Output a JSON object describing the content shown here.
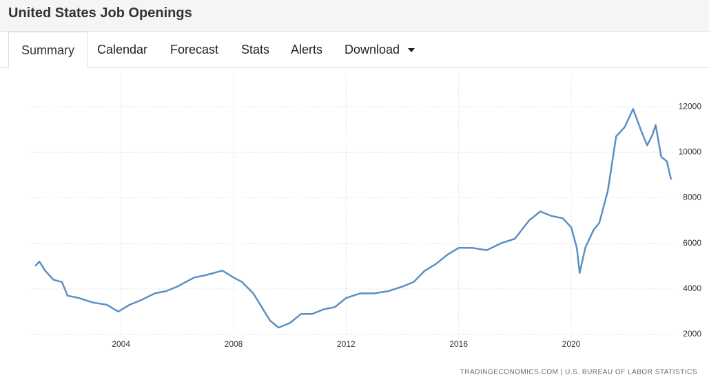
{
  "header": {
    "title": "United States Job Openings"
  },
  "tabs": {
    "items": [
      "Summary",
      "Calendar",
      "Forecast",
      "Stats",
      "Alerts",
      "Download"
    ],
    "active": 0
  },
  "chart_data": {
    "type": "line",
    "x": [
      2000.95,
      2001.1,
      2001.3,
      2001.6,
      2001.9,
      2002.1,
      2002.5,
      2003.0,
      2003.5,
      2003.9,
      2004.3,
      2004.7,
      2005.2,
      2005.6,
      2006.0,
      2006.3,
      2006.6,
      2007.0,
      2007.3,
      2007.6,
      2008.0,
      2008.3,
      2008.7,
      2009.0,
      2009.3,
      2009.6,
      2010.0,
      2010.4,
      2010.8,
      2011.2,
      2011.6,
      2012.0,
      2012.5,
      2013.0,
      2013.5,
      2014.0,
      2014.4,
      2014.8,
      2015.2,
      2015.6,
      2016.0,
      2016.5,
      2017.0,
      2017.5,
      2018.0,
      2018.5,
      2018.9,
      2019.3,
      2019.7,
      2020.0,
      2020.2,
      2020.3,
      2020.5,
      2020.8,
      2021.0,
      2021.3,
      2021.6,
      2021.9,
      2022.2,
      2022.5,
      2022.7,
      2022.9,
      2023.0,
      2023.2,
      2023.4,
      2023.55
    ],
    "values": [
      5000,
      5200,
      4800,
      4400,
      4300,
      3700,
      3600,
      3400,
      3300,
      3000,
      3300,
      3500,
      3800,
      3900,
      4100,
      4300,
      4500,
      4600,
      4700,
      4800,
      4500,
      4300,
      3800,
      3200,
      2600,
      2300,
      2500,
      2900,
      2900,
      3100,
      3200,
      3600,
      3800,
      3800,
      3900,
      4100,
      4300,
      4800,
      5100,
      5500,
      5800,
      5800,
      5700,
      6000,
      6200,
      7000,
      7400,
      7200,
      7100,
      6700,
      5800,
      4700,
      5800,
      6600,
      6900,
      8300,
      10700,
      11100,
      11900,
      10900,
      10300,
      10800,
      11200,
      9800,
      9600,
      8800
    ],
    "color": "#5b8fc3",
    "xlim": [
      2000.8,
      2023.6
    ],
    "xticks": [
      2004,
      2008,
      2012,
      2016,
      2020
    ],
    "ylim": [
      2000,
      13000
    ],
    "yticks": [
      2000,
      4000,
      6000,
      8000,
      10000,
      12000
    ],
    "grid": true,
    "source": "TRADINGECONOMICS.COM | U.S. BUREAU OF LABOR STATISTICS"
  }
}
